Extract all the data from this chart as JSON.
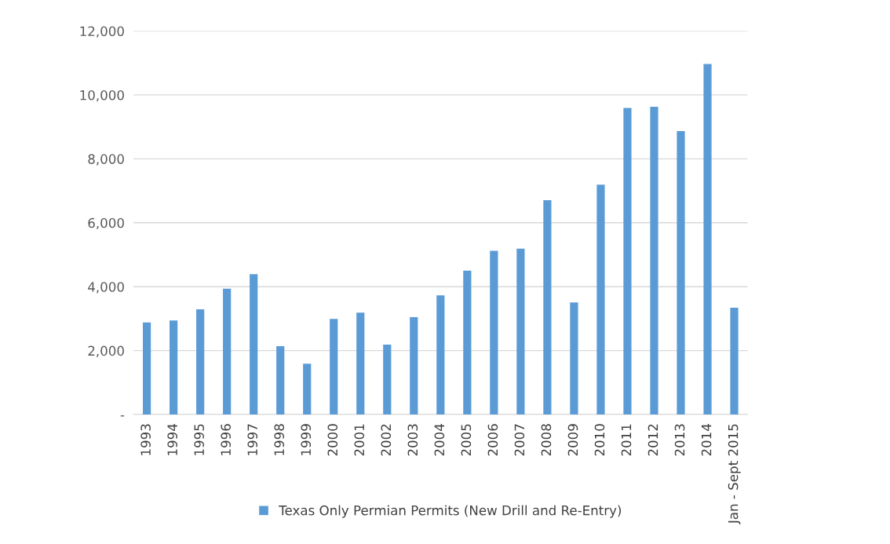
{
  "chart_data": {
    "type": "bar",
    "categories": [
      "1993",
      "1994",
      "1995",
      "1996",
      "1997",
      "1998",
      "1999",
      "2000",
      "2001",
      "2002",
      "2003",
      "2004",
      "2005",
      "2006",
      "2007",
      "2008",
      "2009",
      "2010",
      "2011",
      "2012",
      "2013",
      "2014",
      "Jan - Sept 2015"
    ],
    "series": [
      {
        "name": "Texas Only Permian Permits (New Drill and Re-Entry)",
        "color": "#5b9bd5",
        "values": [
          2880,
          2940,
          3290,
          3940,
          4390,
          2140,
          1590,
          2990,
          3190,
          2190,
          3050,
          3730,
          4500,
          5120,
          5190,
          6710,
          3510,
          7190,
          9590,
          9630,
          8870,
          10970,
          3340
        ]
      }
    ],
    "ylim": [
      0,
      12000
    ],
    "yticks": [
      {
        "value": 0,
        "label": "-"
      },
      {
        "value": 2000,
        "label": "2,000"
      },
      {
        "value": 4000,
        "label": "4,000"
      },
      {
        "value": 6000,
        "label": "6,000"
      },
      {
        "value": 8000,
        "label": "8,000"
      },
      {
        "value": 10000,
        "label": "10,000"
      },
      {
        "value": 12000,
        "label": "12,000"
      }
    ],
    "grid": "y",
    "legend": "bottom"
  }
}
